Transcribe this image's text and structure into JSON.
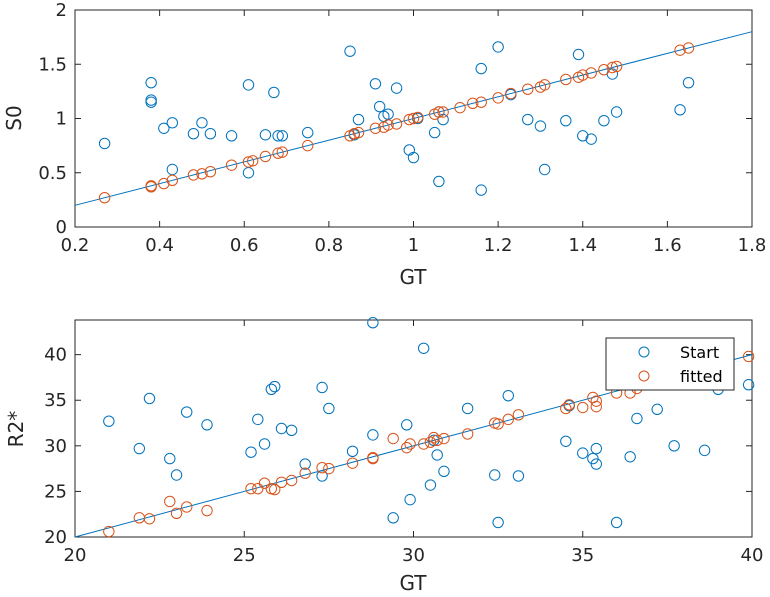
{
  "colors": {
    "start": "#0072BD",
    "fitted": "#D95319",
    "axis": "#262626",
    "legend_border": "#262626"
  },
  "chart_data": [
    {
      "type": "scatter",
      "xlabel": "GT",
      "ylabel": "S0",
      "xlim": [
        0.2,
        1.8
      ],
      "ylim": [
        0,
        2
      ],
      "xticks": [
        0.2,
        0.4,
        0.6,
        0.8,
        1,
        1.2,
        1.4,
        1.6,
        1.8
      ],
      "xtick_labels": [
        "0.2",
        "0.4",
        "0.6",
        "0.8",
        "1",
        "1.2",
        "1.4",
        "1.6",
        "1.8"
      ],
      "yticks": [
        0,
        0.5,
        1,
        1.5,
        2
      ],
      "ytick_labels": [
        "0",
        "0.5",
        "1",
        "1.5",
        "2"
      ],
      "fit_line": {
        "x": [
          0.2,
          1.8
        ],
        "y": [
          0.2,
          1.8
        ]
      },
      "series": [
        {
          "x": [
            0.27,
            0.38,
            0.38,
            0.38,
            0.41,
            0.43,
            0.43,
            0.48,
            0.5,
            0.52,
            0.57,
            0.61,
            0.61,
            0.65,
            0.67,
            0.68,
            0.69,
            0.75,
            0.85,
            0.86,
            0.87,
            0.91,
            0.92,
            0.93,
            0.94,
            0.96,
            0.99,
            1.0,
            1.01,
            1.05,
            1.06,
            1.07,
            1.06,
            1.16,
            1.16,
            1.2,
            1.23,
            1.27,
            1.3,
            1.31,
            1.36,
            1.39,
            1.4,
            1.42,
            1.45,
            1.47,
            1.48,
            1.63,
            1.65
          ],
          "y": [
            0.77,
            1.33,
            1.17,
            1.15,
            0.91,
            0.96,
            0.53,
            0.86,
            0.96,
            0.86,
            0.84,
            0.5,
            1.31,
            0.85,
            1.24,
            0.84,
            0.84,
            0.87,
            1.62,
            0.85,
            0.99,
            1.32,
            1.11,
            1.02,
            1.04,
            1.28,
            0.71,
            0.64,
            1.0,
            0.87,
            0.42,
            0.99,
            1.06,
            1.46,
            0.34,
            1.66,
            1.22,
            0.99,
            0.93,
            0.53,
            0.98,
            1.59,
            0.84,
            0.81,
            0.98,
            1.41,
            1.06,
            1.08,
            1.33
          ]
        },
        {
          "x": [
            0.27,
            0.38,
            0.38,
            0.41,
            0.43,
            0.48,
            0.5,
            0.52,
            0.57,
            0.61,
            0.62,
            0.65,
            0.68,
            0.69,
            0.75,
            0.85,
            0.86,
            0.87,
            0.91,
            0.93,
            0.94,
            0.96,
            0.99,
            1.0,
            1.01,
            1.05,
            1.06,
            1.07,
            1.11,
            1.14,
            1.16,
            1.2,
            1.23,
            1.27,
            1.3,
            1.31,
            1.36,
            1.39,
            1.4,
            1.42,
            1.45,
            1.47,
            1.48,
            1.63,
            1.65
          ],
          "y": [
            0.27,
            0.38,
            0.37,
            0.4,
            0.43,
            0.48,
            0.49,
            0.51,
            0.57,
            0.6,
            0.61,
            0.65,
            0.68,
            0.69,
            0.75,
            0.84,
            0.86,
            0.87,
            0.91,
            0.92,
            0.94,
            0.95,
            0.99,
            1.0,
            1.01,
            1.04,
            1.06,
            1.06,
            1.1,
            1.14,
            1.15,
            1.19,
            1.23,
            1.27,
            1.29,
            1.31,
            1.36,
            1.38,
            1.4,
            1.42,
            1.45,
            1.47,
            1.48,
            1.63,
            1.65
          ]
        }
      ]
    },
    {
      "type": "scatter",
      "xlabel": "GT",
      "ylabel": "R2*",
      "xlim": [
        20,
        40
      ],
      "ylim": [
        20,
        43.8
      ],
      "xticks": [
        20,
        25,
        30,
        35,
        40
      ],
      "xtick_labels": [
        "20",
        "25",
        "30",
        "35",
        "40"
      ],
      "yticks": [
        20,
        25,
        30,
        35,
        40
      ],
      "ytick_labels": [
        "20",
        "25",
        "30",
        "35",
        "40"
      ],
      "legend": {
        "position": "top-right",
        "entries": [
          "Start",
          "fitted"
        ]
      },
      "fit_line": {
        "x": [
          20,
          40
        ],
        "y": [
          20,
          40
        ]
      },
      "series": [
        {
          "name": "Start",
          "x": [
            21.0,
            21.9,
            22.2,
            22.8,
            23.0,
            23.3,
            23.9,
            25.2,
            25.4,
            25.6,
            25.8,
            25.9,
            26.1,
            26.4,
            26.8,
            27.3,
            27.3,
            27.5,
            28.2,
            28.8,
            28.8,
            29.4,
            29.8,
            29.9,
            30.3,
            30.5,
            30.6,
            30.7,
            30.9,
            31.6,
            32.4,
            32.5,
            32.8,
            33.1,
            34.5,
            34.6,
            35.0,
            35.3,
            35.4,
            35.4,
            36.0,
            36.4,
            36.6,
            37.2,
            37.7,
            38.6,
            39.9,
            39.0
          ],
          "y": [
            32.7,
            29.7,
            35.2,
            28.6,
            26.8,
            33.7,
            32.3,
            29.3,
            32.9,
            30.2,
            36.2,
            36.5,
            31.9,
            31.7,
            28.0,
            36.4,
            26.7,
            34.1,
            29.4,
            43.5,
            31.2,
            22.1,
            32.3,
            24.1,
            40.7,
            25.7,
            30.6,
            29.0,
            27.2,
            34.1,
            26.8,
            21.6,
            35.5,
            26.7,
            30.5,
            34.4,
            29.2,
            28.6,
            29.7,
            28.0,
            21.6,
            28.8,
            33.0,
            34.0,
            30.0,
            29.5,
            36.7,
            36.2
          ]
        },
        {
          "name": "fitted",
          "x": [
            21.0,
            21.9,
            22.2,
            22.8,
            23.0,
            23.3,
            23.9,
            25.2,
            25.4,
            25.6,
            25.8,
            25.9,
            26.1,
            26.4,
            26.8,
            27.3,
            27.5,
            28.2,
            28.8,
            28.8,
            29.4,
            29.8,
            29.9,
            30.3,
            30.5,
            30.6,
            30.7,
            30.9,
            31.6,
            32.4,
            32.5,
            32.8,
            33.1,
            34.5,
            34.6,
            35.0,
            35.3,
            35.4,
            35.4,
            36.0,
            36.4,
            36.6,
            39.9
          ],
          "y": [
            20.6,
            22.1,
            22.0,
            23.9,
            22.6,
            23.3,
            22.9,
            25.3,
            25.3,
            25.9,
            25.3,
            25.2,
            26.0,
            26.2,
            27.0,
            27.6,
            27.5,
            28.1,
            28.7,
            28.6,
            30.8,
            29.8,
            30.2,
            30.2,
            30.4,
            30.9,
            30.6,
            30.8,
            31.3,
            32.5,
            32.4,
            32.9,
            33.4,
            34.1,
            34.5,
            34.2,
            35.3,
            34.9,
            34.3,
            35.8,
            35.8,
            36.3,
            39.8
          ]
        }
      ]
    }
  ]
}
